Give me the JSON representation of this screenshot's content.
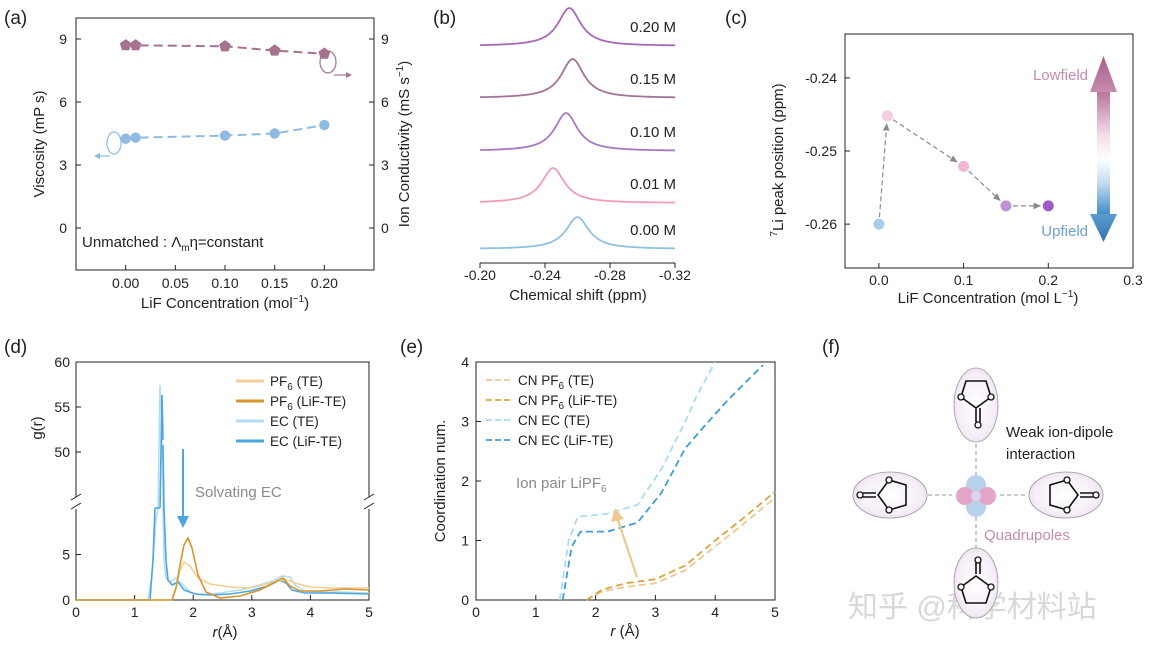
{
  "watermark": "知乎 @科学材料站",
  "chart_data": [
    {
      "panel": "(a)",
      "type": "scatter",
      "xlabel": "LiF Concentration (mol",
      "xlabel_sup": "−1",
      "xlabel_end": ")",
      "ylabel": "Viscosity (mP s)",
      "y2label": "Ion Conductivity (mS s",
      "y2label_sup": "−1",
      "y2label_end": ")",
      "xlim": [
        -0.05,
        0.25
      ],
      "ylim": [
        -2,
        10
      ],
      "y2lim": [
        -2,
        10
      ],
      "xticks": [
        "0.00",
        "0.05",
        "0.10",
        "0.15",
        "0.20"
      ],
      "yticks": [
        "0",
        "3",
        "6",
        "9"
      ],
      "y2ticks": [
        "0",
        "3",
        "6",
        "9"
      ],
      "annotation": "Unmatched :  Λ",
      "annotation_sub": "m",
      "annotation_end": "η=constant",
      "series": [
        {
          "name": "Viscosity",
          "axis": "left",
          "marker": "pentagon",
          "color": "#a5738f",
          "x": [
            0,
            0.01,
            0.1,
            0.15,
            0.2
          ],
          "y": [
            8.7,
            8.7,
            8.65,
            8.45,
            8.3
          ]
        },
        {
          "name": "Ion Conductivity",
          "axis": "right",
          "marker": "circle",
          "color": "#8fbbe2",
          "x": [
            0,
            0.01,
            0.1,
            0.15,
            0.2
          ],
          "y": [
            4.25,
            4.3,
            4.4,
            4.5,
            4.9
          ]
        }
      ]
    },
    {
      "panel": "(b)",
      "type": "line",
      "xlabel": "Chemical shift (ppm)",
      "xlim": [
        -0.2,
        -0.32
      ],
      "xticks": [
        "-0.20",
        "-0.24",
        "-0.28",
        "-0.32"
      ],
      "series": [
        {
          "name": "0.20 M",
          "center": -0.255,
          "color": "#a76ab8"
        },
        {
          "name": "0.15 M",
          "center": -0.257,
          "color": "#a47494"
        },
        {
          "name": "0.10 M",
          "center": -0.253,
          "color": "#a579c4"
        },
        {
          "name": "0.01 M",
          "center": -0.245,
          "color": "#ef9bbf"
        },
        {
          "name": "0.00 M",
          "center": -0.26,
          "color": "#8ec2e2"
        }
      ]
    },
    {
      "panel": "(c)",
      "type": "scatter",
      "xlabel": "LiF Concentration (mol L",
      "xlabel_sup": "−1",
      "xlabel_end": ")",
      "ylabel": "Li peak position (ppm)",
      "ylabel_sup": "7",
      "xlim": [
        -0.04,
        0.3
      ],
      "ylim": [
        -0.266,
        -0.234
      ],
      "xticks": [
        "0.0",
        "0.1",
        "0.2",
        "0.3"
      ],
      "yticks": [
        "-0.24",
        "-0.25",
        "-0.26"
      ],
      "arrow_top_label": "Lowfield",
      "arrow_bottom_label": "Upfield",
      "x": [
        0,
        0.01,
        0.1,
        0.15,
        0.2
      ],
      "y": [
        -0.26,
        -0.2452,
        -0.2521,
        -0.2575,
        -0.2575
      ],
      "colors": [
        "#a9cbee",
        "#f6cce0",
        "#f0b6d4",
        "#bd92d6",
        "#9c5bc9"
      ]
    },
    {
      "panel": "(d)",
      "type": "line",
      "xlabel": "r",
      "xlabel_end": "(Å)",
      "ylabel": "g(r)",
      "xlim": [
        0,
        5
      ],
      "xticks": [
        "0",
        "1",
        "2",
        "3",
        "4",
        "5"
      ],
      "yticks_lower": [
        "0",
        "5"
      ],
      "yticks_upper": [
        "50",
        "55",
        "60"
      ],
      "annotation": "Solvating EC",
      "series": [
        {
          "name": "PF",
          "sub": "6",
          "tail": " (TE)",
          "color": "#f2cf97"
        },
        {
          "name": "PF",
          "sub": "6",
          "tail": " (LiF-TE)",
          "color": "#d9952c"
        },
        {
          "name": "EC",
          "sub": "",
          "tail": " (TE)",
          "color": "#b6dcf2"
        },
        {
          "name": "EC",
          "sub": "",
          "tail": " (LiF-TE)",
          "color": "#4ca6df"
        }
      ]
    },
    {
      "panel": "(e)",
      "type": "line",
      "xlabel": "r",
      "xlabel_end": " (Å)",
      "ylabel": "Coordination num.",
      "xlim": [
        0,
        5
      ],
      "ylim": [
        0,
        4
      ],
      "xticks": [
        "0",
        "1",
        "2",
        "3",
        "4",
        "5"
      ],
      "yticks": [
        "0",
        "1",
        "2",
        "3",
        "4"
      ],
      "annotation": "Ion pair LiPF",
      "annotation_sub": "6",
      "series": [
        {
          "name": "CN PF",
          "sub": "6",
          "tail": " (TE)",
          "color": "#eec98f",
          "x": [
            1.85,
            2.1,
            2.5,
            3.0,
            3.5,
            4.0,
            4.5,
            5.0
          ],
          "y": [
            0,
            0.14,
            0.22,
            0.28,
            0.5,
            0.9,
            1.3,
            1.72
          ]
        },
        {
          "name": "CN PF",
          "sub": "6",
          "tail": " (LiF-TE)",
          "color": "#d9a441",
          "x": [
            1.85,
            2.1,
            2.5,
            3.0,
            3.5,
            4.0,
            4.5,
            5.0
          ],
          "y": [
            0,
            0.17,
            0.28,
            0.35,
            0.58,
            1.0,
            1.4,
            1.82
          ]
        },
        {
          "name": "CN EC",
          "sub": "",
          "tail": " (TE)",
          "color": "#a9dcf4",
          "x": [
            1.4,
            1.55,
            1.7,
            2.2,
            2.7,
            3.1,
            3.5,
            3.7,
            4.0
          ],
          "y": [
            0,
            1.0,
            1.4,
            1.45,
            1.6,
            2.2,
            3.0,
            3.45,
            4.0
          ]
        },
        {
          "name": "CN EC",
          "sub": "",
          "tail": " (LiF-TE)",
          "color": "#3c9ed6",
          "x": [
            1.45,
            1.6,
            1.75,
            2.2,
            2.7,
            3.1,
            3.5,
            3.8,
            4.2,
            4.5,
            4.8
          ],
          "y": [
            0,
            0.9,
            1.15,
            1.15,
            1.3,
            1.8,
            2.55,
            2.9,
            3.35,
            3.65,
            3.95
          ]
        }
      ]
    }
  ],
  "panel_f": {
    "label": "(f)",
    "text_line1": "Weak ion-dipole",
    "text_line2": "interaction",
    "quadrupoles": "Quadrupoles"
  }
}
